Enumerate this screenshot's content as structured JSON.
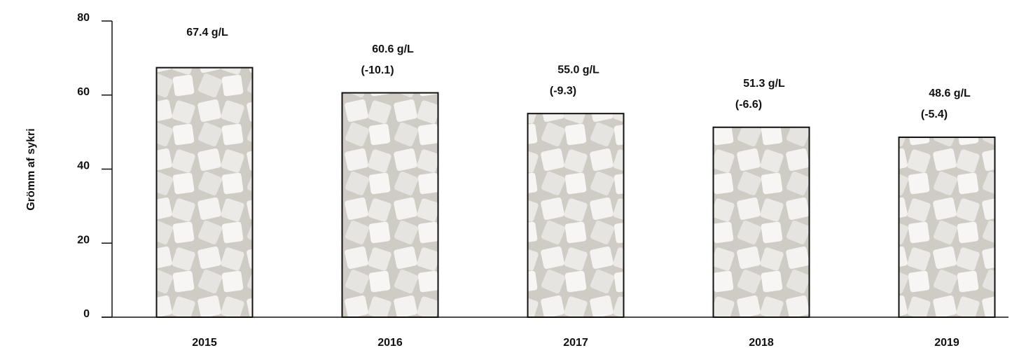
{
  "chart_data": {
    "type": "bar",
    "y_label": "Grömm af sykri",
    "categories": [
      "2015",
      "2016",
      "2017",
      "2018",
      "2019"
    ],
    "values": [
      67.4,
      60.6,
      55.0,
      51.3,
      48.6
    ],
    "value_labels": [
      "67.4 g/L",
      "60.6 g/L",
      "55.0 g/L",
      "51.3 g/L",
      "48.6 g/L"
    ],
    "change_labels": [
      null,
      "(-10.1)",
      "(-9.3)",
      "(-6.6)",
      "(-5.4)"
    ],
    "ylim": [
      0,
      80
    ],
    "yticks": [
      0,
      20,
      40,
      60,
      80
    ],
    "grid": false
  }
}
